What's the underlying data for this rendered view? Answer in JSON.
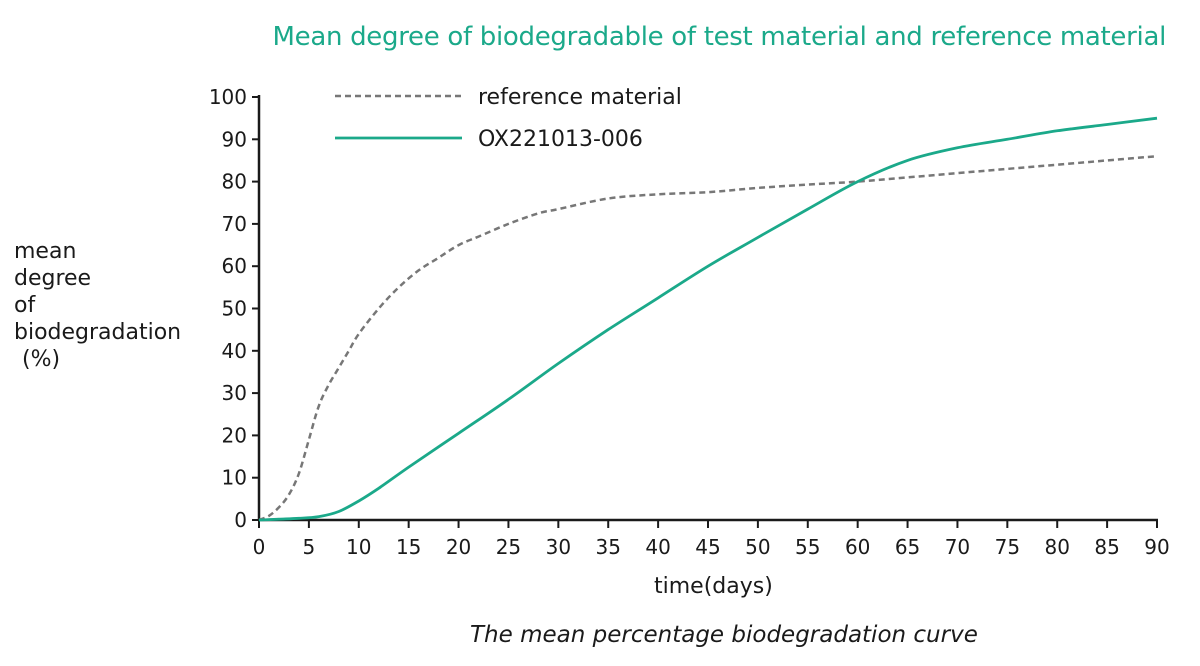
{
  "chart_data": {
    "type": "line",
    "title": "Mean degree of biodegradable of test material and reference material",
    "ylabel_lines": [
      "mean",
      "degree",
      "of",
      "biodegradation",
      "(%)"
    ],
    "xlabel": "time(days)",
    "caption": "The mean percentage biodegradation curve",
    "xlim": [
      0,
      90
    ],
    "ylim": [
      0,
      100
    ],
    "xticks": [
      0,
      5,
      10,
      15,
      20,
      25,
      30,
      35,
      40,
      45,
      50,
      55,
      60,
      65,
      70,
      75,
      80,
      85,
      90
    ],
    "yticks": [
      0,
      10,
      20,
      30,
      40,
      50,
      60,
      70,
      80,
      90,
      100
    ],
    "grid": false,
    "legend_position": "top-left",
    "series": [
      {
        "name": "reference material",
        "color": "#777777",
        "style": "dashed",
        "x": [
          0,
          1,
          2,
          3,
          4,
          5,
          6,
          7,
          8,
          9,
          10,
          12,
          14,
          16,
          18,
          20,
          22,
          25,
          28,
          30,
          35,
          40,
          45,
          50,
          55,
          60,
          65,
          70,
          75,
          80,
          85,
          90
        ],
        "y": [
          0,
          1,
          3,
          6,
          11,
          19,
          27,
          32,
          36,
          40,
          44,
          50,
          55,
          59,
          62,
          65,
          67,
          70,
          72.5,
          73.5,
          76,
          77,
          77.5,
          78.5,
          79.3,
          80,
          81,
          82,
          83,
          84,
          85,
          86
        ]
      },
      {
        "name": "OX221013-006",
        "color": "#1ba98a",
        "style": "solid",
        "x": [
          0,
          2,
          4,
          6,
          8,
          10,
          12,
          15,
          20,
          25,
          30,
          35,
          40,
          45,
          50,
          55,
          60,
          65,
          70,
          75,
          80,
          85,
          90
        ],
        "y": [
          0,
          0.2,
          0.4,
          0.8,
          2,
          4.5,
          7.5,
          12.5,
          20.5,
          28.5,
          37,
          45,
          52.5,
          60,
          66.8,
          73.5,
          80,
          85,
          88,
          90,
          92,
          93.5,
          95
        ]
      }
    ]
  }
}
